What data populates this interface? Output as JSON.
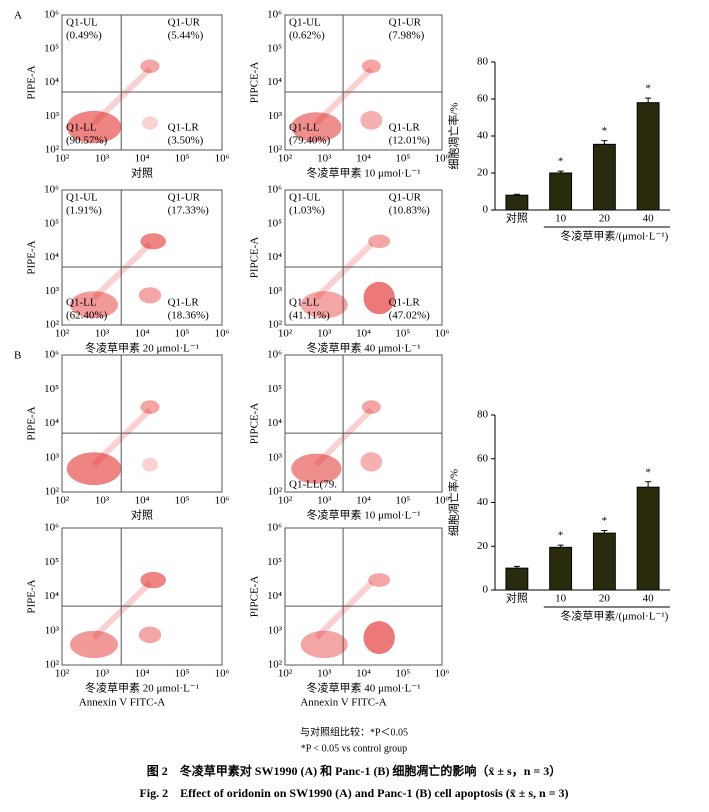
{
  "panel_letters": [
    "A",
    "B"
  ],
  "axis_ticks": [
    "10²",
    "10³",
    "10⁴",
    "10⁵",
    "10⁶"
  ],
  "flow_panels": [
    {
      "y_label": "PIPE-A",
      "x_label": "对照",
      "quadrant_labels": [
        [
          "Q1-UL",
          "(0.49%)"
        ],
        [
          "Q1-UR",
          "(5.44%)"
        ],
        [
          "Q1-LL",
          "(90.57%)"
        ],
        [
          "Q1-LR",
          "(3.50%)"
        ]
      ]
    },
    {
      "y_label": "PIPCE-A",
      "x_label": "冬凌草甲素 10 μmol·L⁻¹",
      "quadrant_labels": [
        [
          "Q1-UL",
          "(0.62%)"
        ],
        [
          "Q1-UR",
          "(7.98%)"
        ],
        [
          "Q1-LL",
          "(79.40%)"
        ],
        [
          "Q1-LR",
          "(12.01%)"
        ]
      ]
    },
    {
      "y_label": "PIPE-A",
      "x_label": "冬凌草甲素 20 μmol·L⁻¹",
      "quadrant_labels": [
        [
          "Q1-UL",
          "(1.91%)"
        ],
        [
          "Q1-UR",
          "(17.33%)"
        ],
        [
          "Q1-LL",
          "(62.40%)"
        ],
        [
          "Q1-LR",
          "(18.36%)"
        ]
      ]
    },
    {
      "y_label": "PIPCE-A",
      "x_label": "冬凌草甲素 40 μmol·L⁻¹",
      "quadrant_labels": [
        [
          "Q1-UL",
          "(1.03%)"
        ],
        [
          "Q1-UR",
          "(10.83%)"
        ],
        [
          "Q1-LL",
          "(41.11%)"
        ],
        [
          "Q1-LR",
          "(47.02%)"
        ]
      ]
    },
    {
      "y_label": "PIPE-A",
      "x_label": "对照"
    },
    {
      "y_label": "PIPCE-A",
      "x_label": "冬凌草甲素 10 μmol·L⁻¹",
      "partial_label": "Q1-LL(79."
    },
    {
      "y_label": "PIPE-A",
      "x_label": "冬凌草甲素 20 μmol·L⁻¹",
      "axis_title": "Annexin V FITC-A"
    },
    {
      "y_label": "PIPCE-A",
      "x_label": "冬凌草甲素  40 μmol·L⁻¹",
      "axis_title": "Annexin V FITC-A"
    }
  ],
  "chart_data": [
    {
      "type": "bar",
      "y_label": "细胞凋亡率/%",
      "x_label": "冬凌草甲素/(μmol·L⁻¹)",
      "categories": [
        "对照",
        "10",
        "20",
        "40"
      ],
      "values": [
        8,
        20,
        35.5,
        58
      ],
      "errors": [
        0.5,
        1,
        2,
        2.5
      ],
      "significance": [
        null,
        "*",
        "*",
        "*"
      ],
      "color": "#2a2a0c",
      "ylim": [
        0,
        80
      ],
      "yticks": [
        0,
        20,
        40,
        60,
        80
      ]
    },
    {
      "type": "bar",
      "y_label": "细胞凋亡率/%",
      "x_label": "冬凌草甲素/(μmol·L⁻¹)",
      "categories": [
        "对照",
        "10",
        "20",
        "40"
      ],
      "values": [
        10,
        19.5,
        26,
        47
      ],
      "errors": [
        0.8,
        1,
        1.2,
        2.5
      ],
      "significance": [
        null,
        "*",
        "*",
        "*"
      ],
      "color": "#2a2a0c",
      "ylim": [
        0,
        80
      ],
      "yticks": [
        0,
        20,
        40,
        60,
        80
      ]
    }
  ],
  "notes": [
    "与对照组比较：*P＜0.05",
    "*P < 0.05 vs control group"
  ],
  "caption_cn": "图 2　冬凌草甲素对 SW1990 (A) 和 Panc-1 (B) 细胞凋亡的影响（x̄ ± s，n = 3）",
  "caption_en": "Fig. 2　Effect of oridonin on SW1990 (A) and Panc-1 (B) cell apoptosis (x̄ ± s, n = 3)"
}
